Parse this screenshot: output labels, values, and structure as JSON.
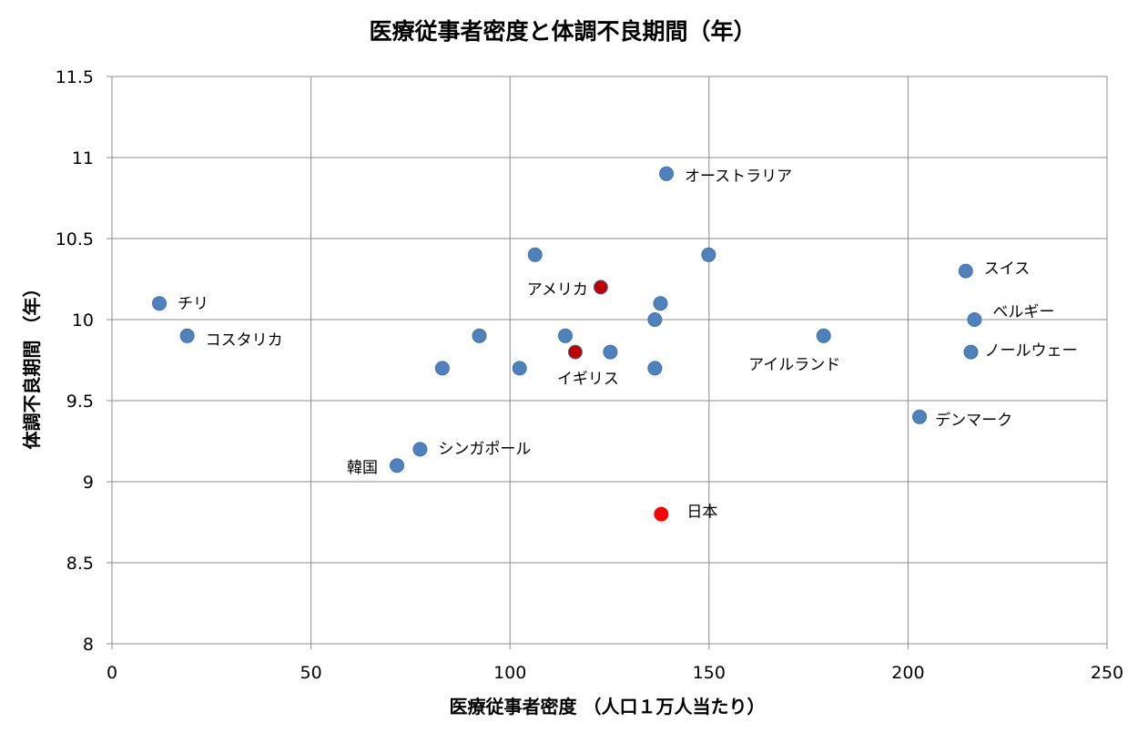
{
  "chart_data": {
    "type": "scatter",
    "title": "医療従事者密度と体調不良期間（年）",
    "xlabel": "医療従事者密度 （人口１万人当たり）",
    "ylabel": "体調不良期間 （年）",
    "xlim": [
      0,
      250
    ],
    "ylim": [
      8,
      11.5
    ],
    "x_ticks": [
      0,
      50,
      100,
      150,
      200,
      250
    ],
    "y_ticks": [
      "8",
      "8.5",
      "9",
      "9.5",
      "10",
      "10.5",
      "11",
      "11.5"
    ],
    "grid": true,
    "colors": {
      "default": "#4f81bd",
      "highlight": "#c00000",
      "japan": "#ff0000"
    },
    "points": [
      {
        "x": 11.9,
        "y": 10.1,
        "label": "チリ",
        "color": "default"
      },
      {
        "x": 18.9,
        "y": 9.9,
        "label": "コスタリカ",
        "color": "default"
      },
      {
        "x": 71.6,
        "y": 9.1,
        "label": "韓国",
        "color": "default"
      },
      {
        "x": 77.4,
        "y": 9.2,
        "label": "シンガポール",
        "color": "default"
      },
      {
        "x": 83.0,
        "y": 9.7,
        "label": "",
        "color": "default"
      },
      {
        "x": 92.3,
        "y": 9.9,
        "label": "",
        "color": "default"
      },
      {
        "x": 102.4,
        "y": 9.7,
        "label": "",
        "color": "default"
      },
      {
        "x": 106.3,
        "y": 10.4,
        "label": "",
        "color": "default"
      },
      {
        "x": 113.9,
        "y": 9.9,
        "label": "",
        "color": "default"
      },
      {
        "x": 116.4,
        "y": 9.8,
        "label": "イギリス",
        "color": "highlight"
      },
      {
        "x": 122.8,
        "y": 10.2,
        "label": "アメリカ",
        "color": "highlight"
      },
      {
        "x": 125.2,
        "y": 9.8,
        "label": "",
        "color": "default"
      },
      {
        "x": 136.4,
        "y": 10.0,
        "label": "",
        "color": "default"
      },
      {
        "x": 136.4,
        "y": 9.7,
        "label": "",
        "color": "default"
      },
      {
        "x": 137.8,
        "y": 10.1,
        "label": "",
        "color": "default"
      },
      {
        "x": 138.0,
        "y": 8.8,
        "label": "日本",
        "color": "japan"
      },
      {
        "x": 139.3,
        "y": 10.9,
        "label": "オーストラリア",
        "color": "default"
      },
      {
        "x": 149.9,
        "y": 10.4,
        "label": "",
        "color": "default"
      },
      {
        "x": 178.8,
        "y": 9.9,
        "label": "アイルランド",
        "color": "default"
      },
      {
        "x": 202.9,
        "y": 9.4,
        "label": "デンマーク",
        "color": "default"
      },
      {
        "x": 214.5,
        "y": 10.3,
        "label": "スイス",
        "color": "default"
      },
      {
        "x": 215.8,
        "y": 9.8,
        "label": "ノールウェー",
        "color": "default"
      },
      {
        "x": 216.7,
        "y": 10.0,
        "label": "ベルギー",
        "color": "default"
      }
    ]
  }
}
